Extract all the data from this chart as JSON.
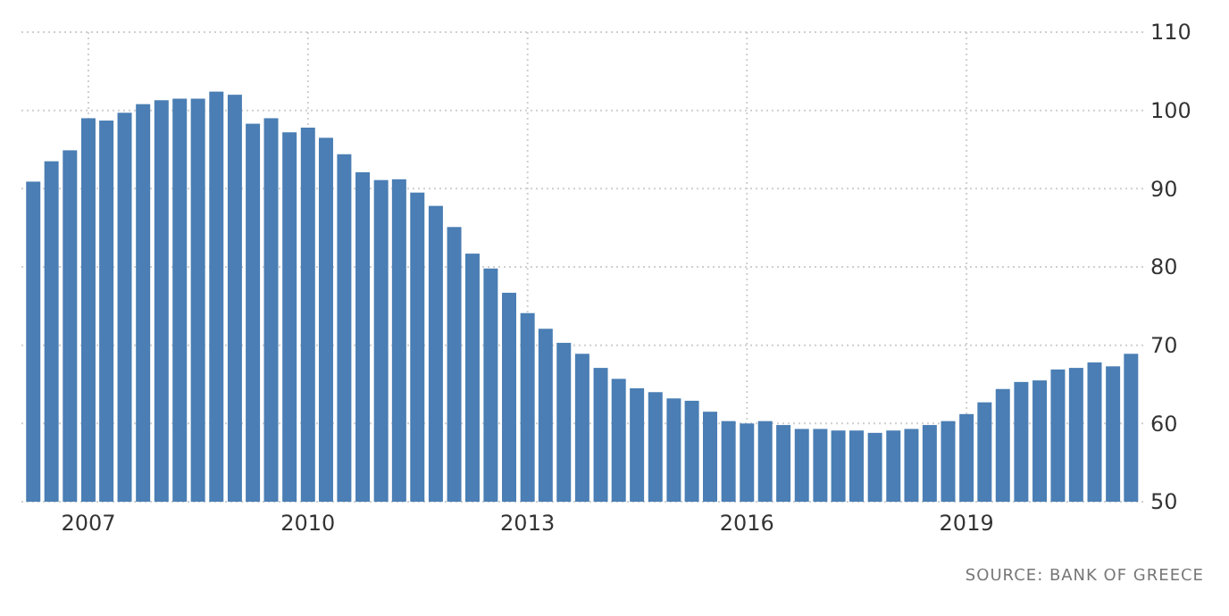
{
  "chart_data": {
    "type": "bar",
    "color": "#4a7eb4",
    "x": [
      "2006-04",
      "2006-07",
      "2006-10",
      "2007-01",
      "2007-04",
      "2007-07",
      "2007-10",
      "2008-01",
      "2008-04",
      "2008-07",
      "2008-10",
      "2009-01",
      "2009-04",
      "2009-07",
      "2009-10",
      "2010-01",
      "2010-04",
      "2010-07",
      "2010-10",
      "2011-01",
      "2011-04",
      "2011-07",
      "2011-10",
      "2012-01",
      "2012-04",
      "2012-07",
      "2012-10",
      "2013-01",
      "2013-04",
      "2013-07",
      "2013-10",
      "2014-01",
      "2014-04",
      "2014-07",
      "2014-10",
      "2015-01",
      "2015-04",
      "2015-07",
      "2015-10",
      "2016-01",
      "2016-04",
      "2016-07",
      "2016-10",
      "2017-01",
      "2017-04",
      "2017-07",
      "2017-10",
      "2018-01",
      "2018-04",
      "2018-07",
      "2018-10",
      "2019-01",
      "2019-04",
      "2019-07",
      "2019-10",
      "2020-01",
      "2020-04",
      "2020-07",
      "2020-10",
      "2021-01",
      "2021-04"
    ],
    "values": [
      90.9,
      93.5,
      94.9,
      99.0,
      98.7,
      99.7,
      100.8,
      101.3,
      101.5,
      101.5,
      102.4,
      102.0,
      98.3,
      99.0,
      97.2,
      97.8,
      96.5,
      94.4,
      92.1,
      91.1,
      91.2,
      89.5,
      87.8,
      85.1,
      81.7,
      79.8,
      76.7,
      74.1,
      72.1,
      70.3,
      68.9,
      67.1,
      65.7,
      64.5,
      64.0,
      63.2,
      62.9,
      61.5,
      60.3,
      60.0,
      60.3,
      59.8,
      59.3,
      59.3,
      59.1,
      59.1,
      58.8,
      59.1,
      59.3,
      59.8,
      60.3,
      61.2,
      62.7,
      64.4,
      65.3,
      65.5,
      66.9,
      67.1,
      67.8,
      67.3,
      68.9
    ],
    "xlim": [
      "2006-02",
      "2021-06"
    ],
    "xticks": [
      "2007",
      "2010",
      "2013",
      "2016",
      "2019"
    ],
    "ylim": [
      50,
      110
    ],
    "yticks": [
      50,
      60,
      70,
      80,
      90,
      100,
      110
    ],
    "grid": true,
    "annotations": [
      "SOURCE: BANK OF GREECE"
    ]
  }
}
